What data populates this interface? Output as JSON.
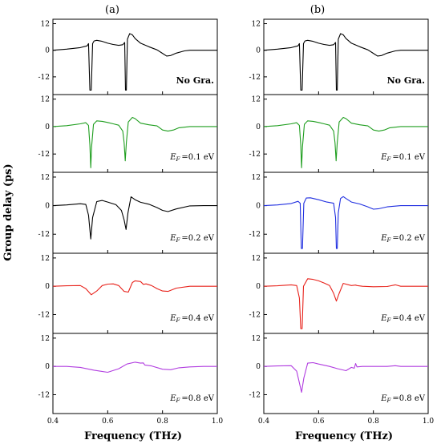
{
  "figure": {
    "ylabel": "Group delay (ps)",
    "xlabel": "Frequency (THz)",
    "xlim": [
      0.4,
      1.0
    ],
    "xticks": [
      "0.4",
      "0.6",
      "0.8",
      "1.0"
    ],
    "xtick_values": [
      0.4,
      0.6,
      0.8,
      1.0
    ],
    "ylim": [
      -20,
      14
    ],
    "yticks": [
      "12",
      "0",
      "-12"
    ],
    "ytick_values": [
      12,
      0,
      -12
    ]
  },
  "columns": [
    {
      "label": "(a)",
      "panels": [
        {
          "label": "No Gra.",
          "color": "#000000"
        },
        {
          "label_prefix": "E",
          "label_sub": "F",
          "label_value": "=0.1 eV",
          "color": "#1f9e1f"
        },
        {
          "label_prefix": "E",
          "label_sub": "F",
          "label_value": "=0.2 eV",
          "color": "#000000"
        },
        {
          "label_prefix": "E",
          "label_sub": "F",
          "label_value": "=0.4 eV",
          "color": "#e8231c"
        },
        {
          "label_prefix": "E",
          "label_sub": "F",
          "label_value": "=0.8 eV",
          "color": "#b13de0"
        }
      ]
    },
    {
      "label": "(b)",
      "panels": [
        {
          "label": "No Gra.",
          "color": "#000000"
        },
        {
          "label_prefix": "E",
          "label_sub": "F",
          "label_value": "=0.1 eV",
          "color": "#1f9e1f"
        },
        {
          "label_prefix": "E",
          "label_sub": "F",
          "label_value": "=0.2 eV",
          "color": "#1f2ee0"
        },
        {
          "label_prefix": "E",
          "label_sub": "F",
          "label_value": "=0.4 eV",
          "color": "#e8231c"
        },
        {
          "label_prefix": "E",
          "label_sub": "F",
          "label_value": "=0.8 eV",
          "color": "#b13de0"
        }
      ]
    }
  ],
  "chart_data": {
    "type": "line",
    "xlabel": "Frequency (THz)",
    "ylabel": "Group delay (ps)",
    "xlim": [
      0.4,
      1.0
    ],
    "ylim": [
      -20,
      14
    ],
    "grid": false,
    "panels": [
      {
        "column": "(a)",
        "label": "No Gra.",
        "x": [
          0.4,
          0.45,
          0.5,
          0.525,
          0.53,
          0.535,
          0.54,
          0.545,
          0.55,
          0.56,
          0.58,
          0.6,
          0.62,
          0.64,
          0.655,
          0.662,
          0.665,
          0.668,
          0.672,
          0.68,
          0.69,
          0.7,
          0.72,
          0.75,
          0.78,
          0.8,
          0.815,
          0.83,
          0.85,
          0.88,
          0.9,
          0.95,
          1.0
        ],
        "y": [
          0,
          0.5,
          1.2,
          2,
          3,
          -18,
          -18,
          3,
          4.2,
          4.5,
          4,
          3.2,
          2.6,
          2.2,
          2.5,
          3.5,
          -18,
          -18,
          5,
          7.5,
          7,
          5.3,
          3.2,
          1.6,
          0.2,
          -1.4,
          -2.6,
          -2.4,
          -1.3,
          -0.3,
          0,
          0,
          0
        ]
      },
      {
        "column": "(a)",
        "label": "EF=0.1 eV",
        "x": [
          0.4,
          0.45,
          0.5,
          0.52,
          0.53,
          0.535,
          0.538,
          0.541,
          0.548,
          0.56,
          0.58,
          0.6,
          0.62,
          0.64,
          0.655,
          0.66,
          0.664,
          0.668,
          0.675,
          0.69,
          0.7,
          0.72,
          0.75,
          0.78,
          0.8,
          0.82,
          0.84,
          0.86,
          0.9,
          0.95,
          1.0
        ],
        "y": [
          0,
          0.4,
          1.2,
          1.7,
          0.5,
          -8,
          -18,
          -9,
          1,
          2.5,
          2.3,
          1.8,
          1.2,
          0.6,
          -2,
          -7,
          -15,
          -7,
          2,
          4,
          3.5,
          1.5,
          0.8,
          0.3,
          -1.5,
          -2,
          -1.5,
          -0.5,
          0,
          0,
          0
        ]
      },
      {
        "column": "(a)",
        "label": "EF=0.2 eV",
        "x": [
          0.4,
          0.45,
          0.5,
          0.52,
          0.53,
          0.538,
          0.545,
          0.56,
          0.58,
          0.6,
          0.63,
          0.65,
          0.66,
          0.667,
          0.674,
          0.685,
          0.7,
          0.72,
          0.75,
          0.78,
          0.8,
          0.82,
          0.85,
          0.9,
          0.95,
          1.0
        ],
        "y": [
          0,
          0.3,
          0.8,
          0.5,
          -4,
          -14,
          -5,
          1.7,
          2.2,
          1.5,
          0.4,
          -2,
          -6,
          -10,
          -3,
          3.7,
          2.5,
          1.4,
          0.6,
          -0.8,
          -2,
          -2.5,
          -1.4,
          -0.1,
          0,
          0
        ]
      },
      {
        "column": "(a)",
        "label": "EF=0.4 eV",
        "x": [
          0.4,
          0.45,
          0.5,
          0.52,
          0.54,
          0.56,
          0.58,
          0.6,
          0.62,
          0.64,
          0.66,
          0.675,
          0.69,
          0.7,
          0.72,
          0.73,
          0.74,
          0.76,
          0.78,
          0.8,
          0.82,
          0.85,
          0.9,
          0.95,
          1.0
        ],
        "y": [
          0,
          0.2,
          0.3,
          -1,
          -3.6,
          -2,
          0.3,
          0.9,
          1,
          0.3,
          -2.2,
          -2.5,
          1.6,
          2.3,
          2,
          0.8,
          1,
          0.3,
          -1,
          -2,
          -2.2,
          -0.8,
          0,
          0,
          0
        ]
      },
      {
        "column": "(a)",
        "label": "EF=0.8 eV",
        "x": [
          0.4,
          0.45,
          0.5,
          0.55,
          0.6,
          0.64,
          0.67,
          0.7,
          0.72,
          0.73,
          0.735,
          0.76,
          0.8,
          0.83,
          0.86,
          0.9,
          0.95,
          1.0
        ],
        "y": [
          0,
          0,
          -0.4,
          -1.6,
          -2.5,
          -1,
          1,
          1.8,
          1.4,
          1.5,
          0.6,
          0.2,
          -1.2,
          -1.4,
          -0.6,
          -0.2,
          0,
          0
        ]
      },
      {
        "column": "(b)",
        "label": "No Gra.",
        "x": [
          0.4,
          0.45,
          0.5,
          0.525,
          0.53,
          0.535,
          0.54,
          0.545,
          0.55,
          0.56,
          0.58,
          0.6,
          0.62,
          0.64,
          0.655,
          0.662,
          0.665,
          0.668,
          0.672,
          0.68,
          0.69,
          0.7,
          0.72,
          0.75,
          0.78,
          0.8,
          0.815,
          0.83,
          0.85,
          0.88,
          0.9,
          0.95,
          1.0
        ],
        "y": [
          0,
          0.5,
          1.2,
          2,
          3,
          -18,
          -18,
          3,
          4.2,
          4.5,
          4,
          3.2,
          2.6,
          2.2,
          2.5,
          3.5,
          -18,
          -18,
          5,
          7.5,
          7,
          5.3,
          3.2,
          1.6,
          0.2,
          -1.4,
          -2.6,
          -2.4,
          -1.3,
          -0.3,
          0,
          0,
          0
        ]
      },
      {
        "column": "(b)",
        "label": "EF=0.1 eV",
        "x": [
          0.4,
          0.45,
          0.5,
          0.52,
          0.53,
          0.535,
          0.538,
          0.541,
          0.548,
          0.56,
          0.58,
          0.6,
          0.62,
          0.64,
          0.655,
          0.66,
          0.664,
          0.668,
          0.675,
          0.69,
          0.7,
          0.72,
          0.75,
          0.78,
          0.8,
          0.82,
          0.84,
          0.86,
          0.9,
          0.95,
          1.0
        ],
        "y": [
          0,
          0.4,
          1.2,
          1.7,
          0.5,
          -8,
          -18,
          -9,
          1,
          2.5,
          2.3,
          1.8,
          1.2,
          0.6,
          -2,
          -7,
          -15,
          -7,
          2,
          4,
          3.5,
          1.5,
          0.8,
          0.3,
          -1.5,
          -2,
          -1.5,
          -0.5,
          0,
          0,
          0
        ]
      },
      {
        "column": "(b)",
        "label": "EF=0.2 eV",
        "x": [
          0.4,
          0.45,
          0.5,
          0.525,
          0.533,
          0.537,
          0.541,
          0.546,
          0.555,
          0.57,
          0.6,
          0.63,
          0.655,
          0.662,
          0.665,
          0.668,
          0.672,
          0.68,
          0.69,
          0.7,
          0.72,
          0.75,
          0.78,
          0.8,
          0.82,
          0.85,
          0.9,
          0.95,
          1.0
        ],
        "y": [
          0,
          0.3,
          0.9,
          1.8,
          1,
          -18,
          -18,
          1,
          3.2,
          3.3,
          2.5,
          1.5,
          1,
          -5,
          -18,
          -18,
          -3,
          3,
          3.8,
          3,
          1.5,
          0.7,
          -0.5,
          -1.5,
          -1.3,
          -0.5,
          0,
          0,
          0
        ]
      },
      {
        "column": "(b)",
        "label": "EF=0.4 eV",
        "x": [
          0.4,
          0.45,
          0.5,
          0.52,
          0.53,
          0.535,
          0.54,
          0.545,
          0.56,
          0.58,
          0.6,
          0.62,
          0.64,
          0.655,
          0.665,
          0.675,
          0.69,
          0.72,
          0.735,
          0.74,
          0.76,
          0.8,
          0.85,
          0.88,
          0.9,
          0.95,
          1.0
        ],
        "y": [
          0,
          0.2,
          0.6,
          0.3,
          -5,
          -18,
          -18,
          0,
          3.2,
          2.9,
          2.3,
          1.4,
          0.3,
          -3,
          -6.3,
          -3,
          1.2,
          0.3,
          0.5,
          0.3,
          0,
          -0.2,
          -0.1,
          0.6,
          0,
          0,
          0
        ]
      },
      {
        "column": "(b)",
        "label": "EF=0.8 eV",
        "x": [
          0.4,
          0.45,
          0.5,
          0.52,
          0.53,
          0.538,
          0.546,
          0.56,
          0.58,
          0.6,
          0.64,
          0.67,
          0.7,
          0.72,
          0.73,
          0.735,
          0.74,
          0.76,
          0.8,
          0.85,
          0.88,
          0.9,
          0.95,
          1.0
        ],
        "y": [
          0,
          0.2,
          0.3,
          -2,
          -7,
          -11,
          -5,
          1.4,
          1.6,
          1,
          0,
          -1,
          -1.8,
          -0.4,
          -0.8,
          1.2,
          -0.2,
          0,
          0,
          0,
          0.3,
          0,
          0,
          0
        ]
      }
    ]
  }
}
